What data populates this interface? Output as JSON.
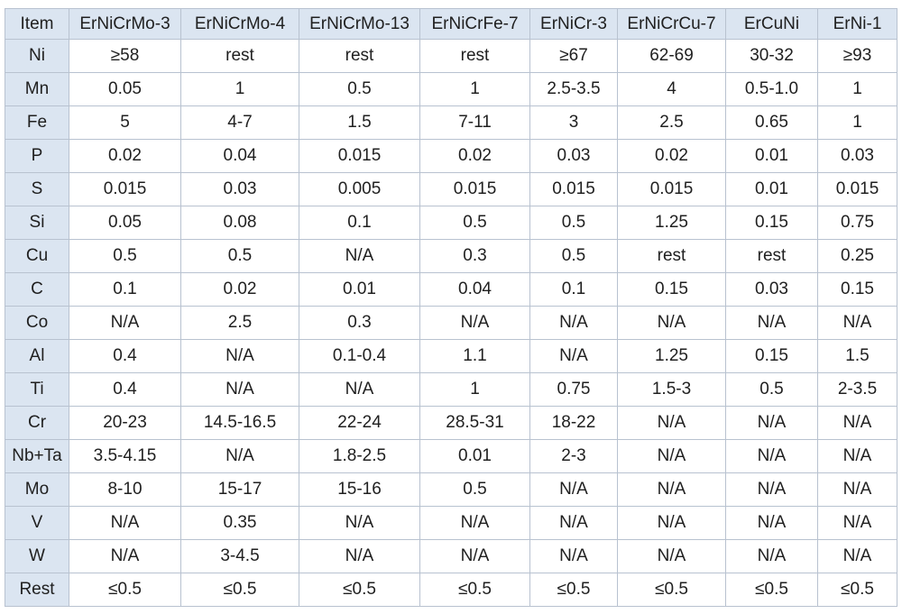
{
  "table": {
    "headers": [
      "Item",
      "ErNiCrMo-3",
      "ErNiCrMo-4",
      "ErNiCrMo-13",
      "ErNiCrFe-7",
      "ErNiCr-3",
      "ErNiCrCu-7",
      "ErCuNi",
      "ErNi-1"
    ],
    "rows": [
      {
        "element": "Ni",
        "values": [
          "≥58",
          "rest",
          "rest",
          "rest",
          "≥67",
          "62-69",
          "30-32",
          "≥93"
        ]
      },
      {
        "element": "Mn",
        "values": [
          "0.05",
          "1",
          "0.5",
          "1",
          "2.5-3.5",
          "4",
          "0.5-1.0",
          "1"
        ]
      },
      {
        "element": "Fe",
        "values": [
          "5",
          "4-7",
          "1.5",
          "7-11",
          "3",
          "2.5",
          "0.65",
          "1"
        ]
      },
      {
        "element": "P",
        "values": [
          "0.02",
          "0.04",
          "0.015",
          "0.02",
          "0.03",
          "0.02",
          "0.01",
          "0.03"
        ]
      },
      {
        "element": "S",
        "values": [
          "0.015",
          "0.03",
          "0.005",
          "0.015",
          "0.015",
          "0.015",
          "0.01",
          "0.015"
        ]
      },
      {
        "element": "Si",
        "values": [
          "0.05",
          "0.08",
          "0.1",
          "0.5",
          "0.5",
          "1.25",
          "0.15",
          "0.75"
        ]
      },
      {
        "element": "Cu",
        "values": [
          "0.5",
          "0.5",
          "N/A",
          "0.3",
          "0.5",
          "rest",
          "rest",
          "0.25"
        ]
      },
      {
        "element": "C",
        "values": [
          "0.1",
          "0.02",
          "0.01",
          "0.04",
          "0.1",
          "0.15",
          "0.03",
          "0.15"
        ]
      },
      {
        "element": "Co",
        "values": [
          "N/A",
          "2.5",
          "0.3",
          "N/A",
          "N/A",
          "N/A",
          "N/A",
          "N/A"
        ]
      },
      {
        "element": "Al",
        "values": [
          "0.4",
          "N/A",
          "0.1-0.4",
          "1.1",
          "N/A",
          "1.25",
          "0.15",
          "1.5"
        ]
      },
      {
        "element": "Ti",
        "values": [
          "0.4",
          "N/A",
          "N/A",
          "1",
          "0.75",
          "1.5-3",
          "0.5",
          "2-3.5"
        ]
      },
      {
        "element": "Cr",
        "values": [
          "20-23",
          "14.5-16.5",
          "22-24",
          "28.5-31",
          "18-22",
          "N/A",
          "N/A",
          "N/A"
        ]
      },
      {
        "element": "Nb+Ta",
        "values": [
          "3.5-4.15",
          "N/A",
          "1.8-2.5",
          "0.01",
          "2-3",
          "N/A",
          "N/A",
          "N/A"
        ]
      },
      {
        "element": "Mo",
        "values": [
          "8-10",
          "15-17",
          "15-16",
          "0.5",
          "N/A",
          "N/A",
          "N/A",
          "N/A"
        ]
      },
      {
        "element": "V",
        "values": [
          "N/A",
          "0.35",
          "N/A",
          "N/A",
          "N/A",
          "N/A",
          "N/A",
          "N/A"
        ]
      },
      {
        "element": "W",
        "values": [
          "N/A",
          "3-4.5",
          "N/A",
          "N/A",
          "N/A",
          "N/A",
          "N/A",
          "N/A"
        ]
      },
      {
        "element": "Rest",
        "values": [
          "≤0.5",
          "≤0.5",
          "≤0.5",
          "≤0.5",
          "≤0.5",
          "≤0.5",
          "≤0.5",
          "≤0.5"
        ]
      }
    ]
  },
  "colors": {
    "header_bg": "#dbe5f1",
    "border": "#b8c2d0",
    "text": "#202020"
  }
}
